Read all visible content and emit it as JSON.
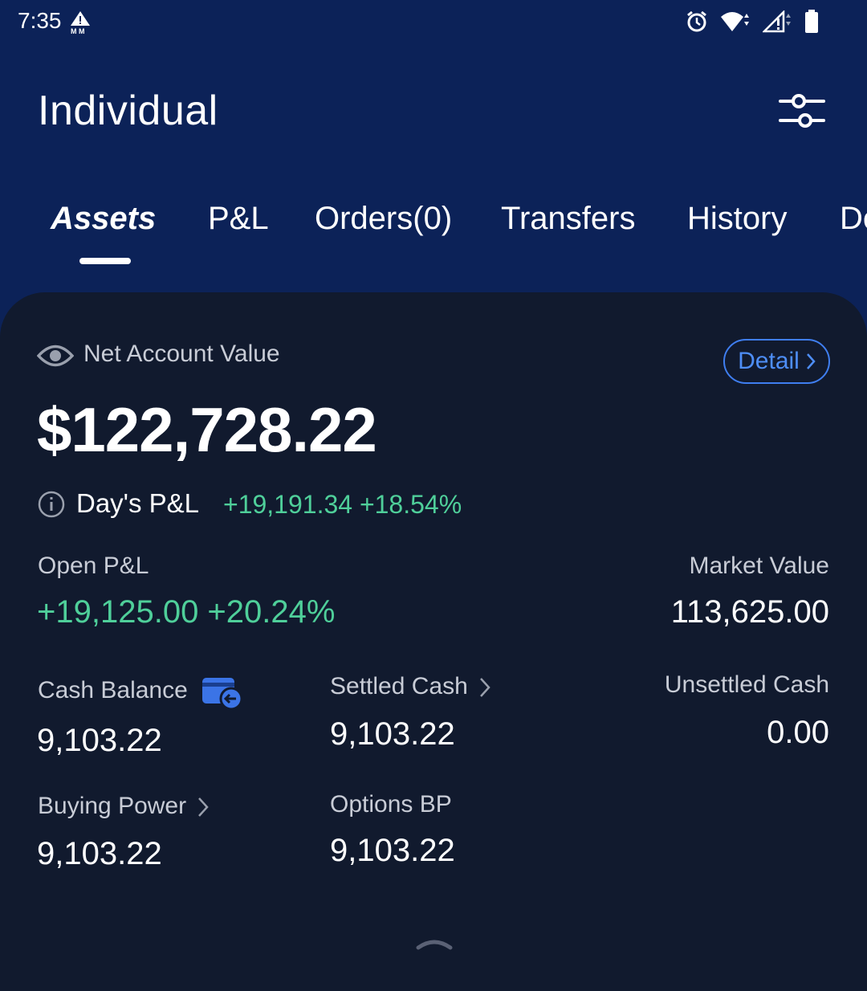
{
  "status_bar": {
    "time": "7:35",
    "icons": [
      "carrier-alert-icon",
      "alarm-icon",
      "wifi-icon",
      "signal-icon",
      "battery-icon"
    ]
  },
  "header": {
    "title": "Individual",
    "filter_icon": "sliders-icon"
  },
  "tabs": [
    {
      "label": "Assets",
      "active": true
    },
    {
      "label": "P&L",
      "active": false
    },
    {
      "label": "Orders(0)",
      "active": false
    },
    {
      "label": "Transfers",
      "active": false
    },
    {
      "label": "History",
      "active": false
    },
    {
      "label": "De",
      "active": false
    }
  ],
  "account": {
    "net_label": "Net Account Value",
    "detail_label": "Detail",
    "net_value": "$122,728.22",
    "days_pl_label": "Day's P&L",
    "days_pl_value": "+19,191.34 +18.54%",
    "open_pl_label": "Open P&L",
    "open_pl_value": "+19,125.00 +20.24%",
    "market_value_label": "Market Value",
    "market_value": "113,625.00",
    "cash_balance_label": "Cash Balance",
    "cash_balance": "9,103.22",
    "settled_cash_label": "Settled Cash",
    "settled_cash": "9,103.22",
    "unsettled_cash_label": "Unsettled Cash",
    "unsettled_cash": "0.00",
    "buying_power_label": "Buying Power",
    "buying_power": "9,103.22",
    "options_bp_label": "Options BP",
    "options_bp": "9,103.22"
  },
  "colors": {
    "header_bg": "#0c2258",
    "card_bg": "#111a2e",
    "positive": "#4fcf9a",
    "accent": "#4e8ef7"
  }
}
